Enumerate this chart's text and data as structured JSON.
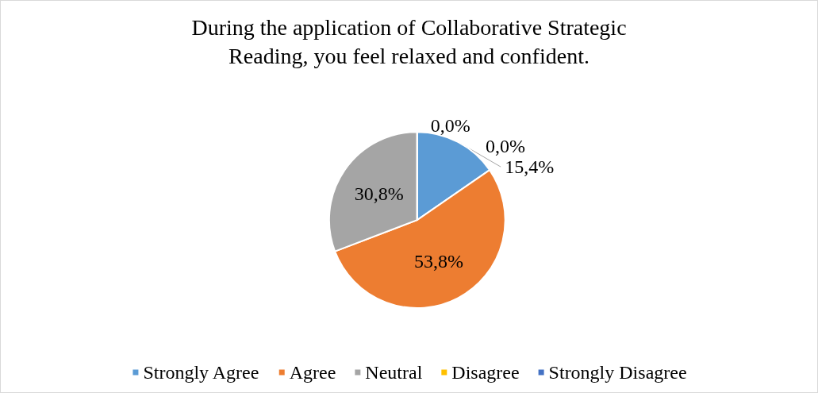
{
  "chart_data": {
    "type": "pie",
    "title": "During the application of Collaborative Strategic\nReading, you feel relaxed and confident.",
    "categories": [
      "Strongly Agree",
      "Agree",
      "Neutral",
      "Disagree",
      "Strongly Disagree"
    ],
    "values": [
      15.4,
      53.8,
      30.8,
      0,
      0
    ],
    "colors": [
      "#5b9bd5",
      "#ed7d31",
      "#a5a5a5",
      "#ffc000",
      "#4472c4"
    ],
    "value_labels": [
      "15,4%",
      "53,8%",
      "30,8%",
      "0,0%",
      "0,0%"
    ],
    "legend": "bottom"
  }
}
